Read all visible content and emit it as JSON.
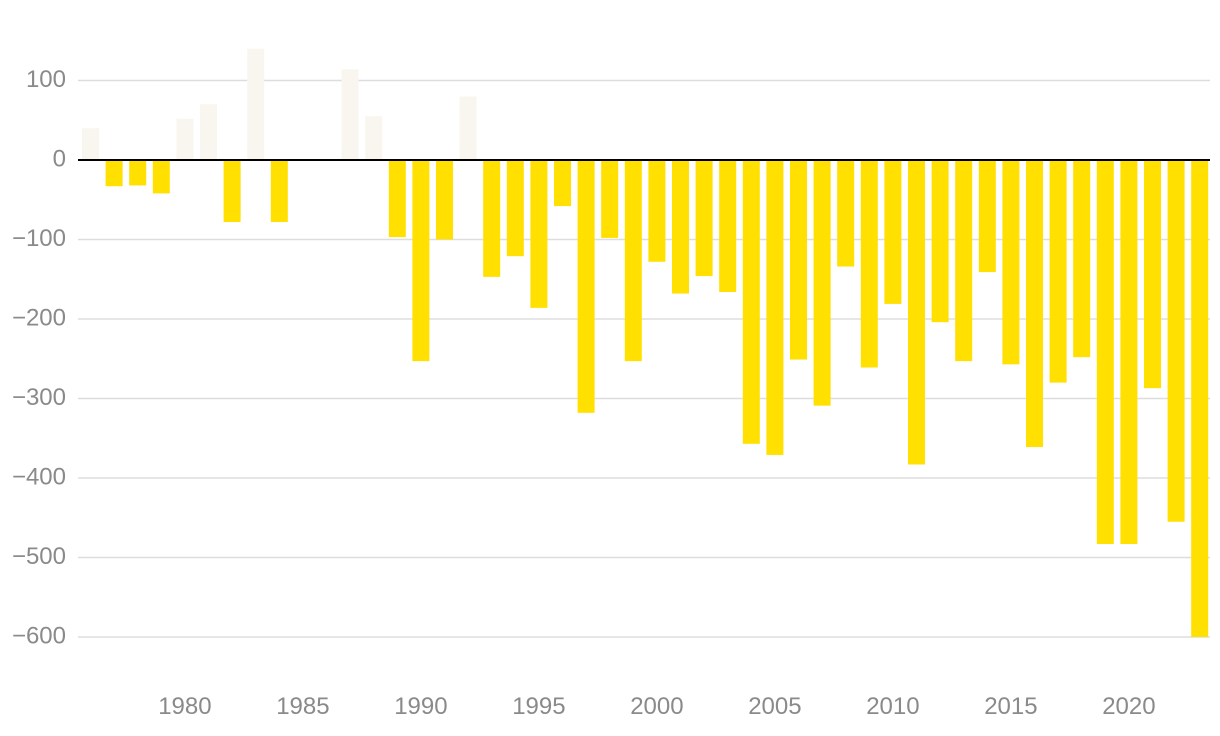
{
  "chart_data": {
    "type": "bar",
    "title": "",
    "xlabel": "",
    "ylabel": "",
    "x": [
      1976,
      1977,
      1978,
      1979,
      1980,
      1981,
      1982,
      1983,
      1984,
      1985,
      1986,
      1987,
      1988,
      1989,
      1990,
      1991,
      1992,
      1993,
      1994,
      1995,
      1996,
      1997,
      1998,
      1999,
      2000,
      2001,
      2002,
      2003,
      2004,
      2005,
      2006,
      2007,
      2008,
      2009,
      2010,
      2011,
      2012,
      2013,
      2014,
      2015,
      2016,
      2017,
      2018,
      2019,
      2020,
      2021,
      2022,
      2023
    ],
    "values": [
      40,
      -33,
      -32,
      -42,
      52,
      70,
      -78,
      140,
      -78,
      0,
      0,
      114,
      55,
      -97,
      -253,
      -100,
      80,
      -147,
      -121,
      -186,
      -58,
      -318,
      -98,
      -253,
      -128,
      -168,
      -146,
      -166,
      -357,
      -371,
      -251,
      -309,
      -134,
      -261,
      -181,
      -383,
      -204,
      -253,
      -141,
      -257,
      -361,
      -280,
      -248,
      -483,
      -483,
      -287,
      -455,
      -600
    ],
    "ylim": [
      -650,
      160
    ],
    "y_ticks": [
      {
        "value": 100,
        "label": "100"
      },
      {
        "value": 0,
        "label": "0"
      },
      {
        "value": -100,
        "label": "−100"
      },
      {
        "value": -200,
        "label": "−200"
      },
      {
        "value": -300,
        "label": "−300"
      },
      {
        "value": -400,
        "label": "−400"
      },
      {
        "value": -500,
        "label": "−500"
      },
      {
        "value": -600,
        "label": "−600"
      }
    ],
    "x_ticks": [
      {
        "value": 1980,
        "label": "1980"
      },
      {
        "value": 1985,
        "label": "1985"
      },
      {
        "value": 1990,
        "label": "1990"
      },
      {
        "value": 1995,
        "label": "1995"
      },
      {
        "value": 2000,
        "label": "2000"
      },
      {
        "value": 2005,
        "label": "2005"
      },
      {
        "value": 2010,
        "label": "2010"
      },
      {
        "value": 2015,
        "label": "2015"
      },
      {
        "value": 2020,
        "label": "2020"
      }
    ],
    "grid": true,
    "legend": "none",
    "colors": {
      "negative": "#FFE000",
      "positive": "#F8F6EF",
      "zero_line": "#000000",
      "grid": "#DDDDDD",
      "tick_label": "#8A8A8A"
    }
  }
}
